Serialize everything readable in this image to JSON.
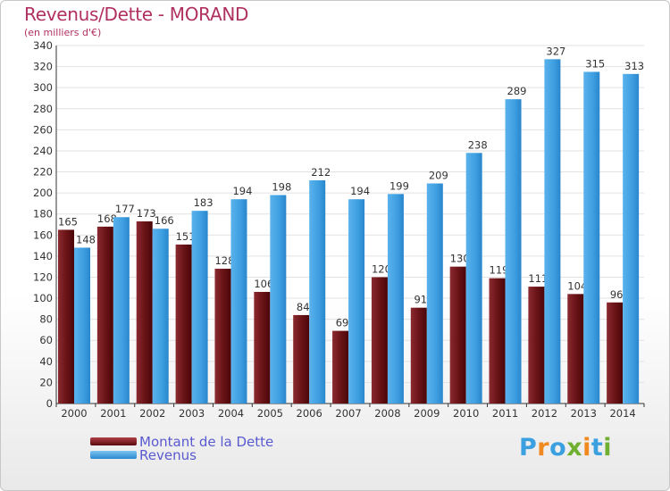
{
  "chart_data": {
    "type": "bar",
    "title": "Revenus/Dette - MORAND",
    "subtitle": "(en milliers d'€)",
    "categories": [
      "2000",
      "2001",
      "2002",
      "2003",
      "2004",
      "2005",
      "2006",
      "2007",
      "2008",
      "2009",
      "2010",
      "2011",
      "2012",
      "2013",
      "2014"
    ],
    "series": [
      {
        "name": "Montant de la Dette",
        "color": "#6b1418",
        "values": [
          165,
          168,
          173,
          151,
          128,
          106,
          84,
          69,
          120,
          91,
          130,
          119,
          111,
          104,
          96
        ]
      },
      {
        "name": "Revenus",
        "color": "#3d9ee0",
        "values": [
          148,
          177,
          166,
          183,
          194,
          198,
          212,
          194,
          199,
          209,
          238,
          289,
          327,
          315,
          313
        ]
      }
    ],
    "ylim": [
      0,
      340
    ],
    "yticks": [
      0,
      20,
      40,
      60,
      80,
      100,
      120,
      140,
      160,
      180,
      200,
      220,
      240,
      260,
      280,
      300,
      320,
      340
    ],
    "grid": true,
    "legend_position": "bottom-left"
  },
  "logo": {
    "letters": [
      "P",
      "r",
      "o",
      "x",
      "i",
      "t",
      "i"
    ],
    "colors": [
      "#3aa0e0",
      "#f08a20",
      "#3aa0e0",
      "#70b030",
      "#f08a20",
      "#3aa0e0",
      "#70b030"
    ]
  }
}
